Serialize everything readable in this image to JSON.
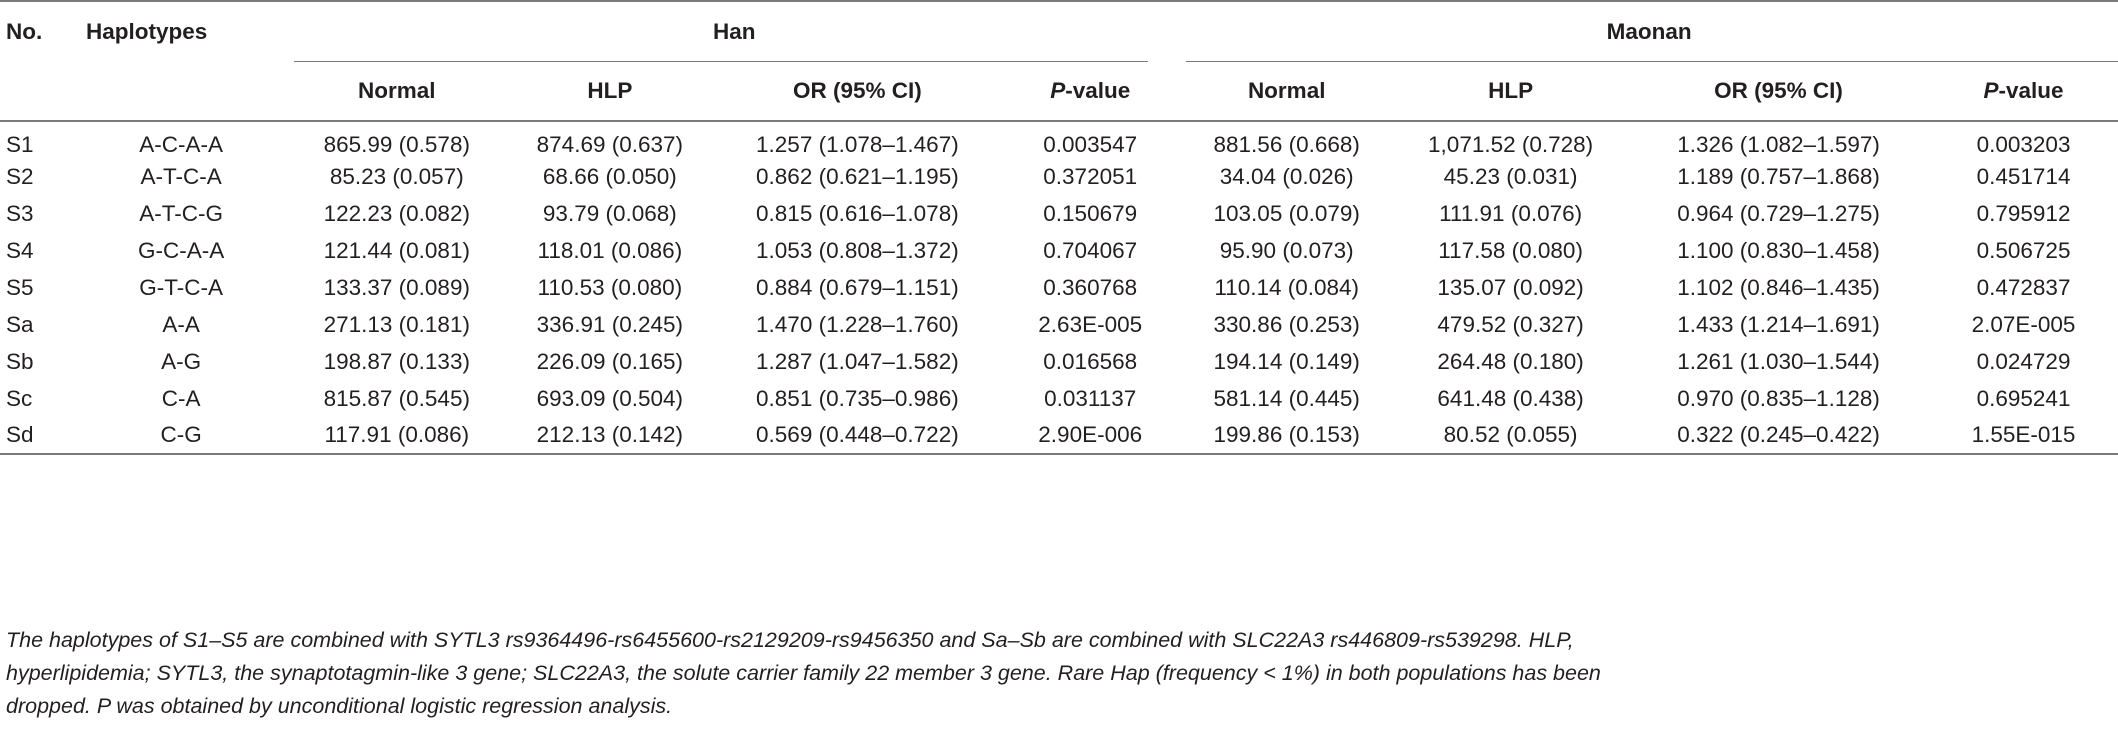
{
  "headers": {
    "no": "No.",
    "haplotypes": "Haplotypes",
    "group_han": "Han",
    "group_maonan": "Maonan",
    "sub": [
      "Normal",
      "HLP",
      "OR (95% CI)",
      "P",
      "-value"
    ]
  },
  "rows": [
    [
      "S1",
      "A-C-A-A",
      "865.99 (0.578)",
      "874.69 (0.637)",
      "1.257 (1.078–1.467)",
      "0.003547",
      "881.56 (0.668)",
      "1,071.52 (0.728)",
      "1.326 (1.082–1.597)",
      "0.003203"
    ],
    [
      "S2",
      "A-T-C-A",
      "85.23 (0.057)",
      "68.66 (0.050)",
      "0.862 (0.621–1.195)",
      "0.372051",
      "34.04 (0.026)",
      "45.23 (0.031)",
      "1.189 (0.757–1.868)",
      "0.451714"
    ],
    [
      "S3",
      "A-T-C-G",
      "122.23 (0.082)",
      "93.79 (0.068)",
      "0.815 (0.616–1.078)",
      "0.150679",
      "103.05 (0.079)",
      "111.91 (0.076)",
      "0.964 (0.729–1.275)",
      "0.795912"
    ],
    [
      "S4",
      "G-C-A-A",
      "121.44 (0.081)",
      "118.01 (0.086)",
      "1.053 (0.808–1.372)",
      "0.704067",
      "95.90 (0.073)",
      "117.58 (0.080)",
      "1.100 (0.830–1.458)",
      "0.506725"
    ],
    [
      "S5",
      "G-T-C-A",
      "133.37 (0.089)",
      "110.53 (0.080)",
      "0.884 (0.679–1.151)",
      "0.360768",
      "110.14 (0.084)",
      "135.07 (0.092)",
      "1.102 (0.846–1.435)",
      "0.472837"
    ],
    [
      "Sa",
      "A-A",
      "271.13 (0.181)",
      "336.91 (0.245)",
      "1.470 (1.228–1.760)",
      "2.63E-005",
      "330.86 (0.253)",
      "479.52 (0.327)",
      "1.433 (1.214–1.691)",
      "2.07E-005"
    ],
    [
      "Sb",
      "A-G",
      "198.87 (0.133)",
      "226.09 (0.165)",
      "1.287 (1.047–1.582)",
      "0.016568",
      "194.14 (0.149)",
      "264.48 (0.180)",
      "1.261 (1.030–1.544)",
      "0.024729"
    ],
    [
      "Sc",
      "C-A",
      "815.87 (0.545)",
      "693.09 (0.504)",
      "0.851 (0.735–0.986)",
      "0.031137",
      "581.14 (0.445)",
      "641.48 (0.438)",
      "0.970 (0.835–1.128)",
      "0.695241"
    ],
    [
      "Sd",
      "C-G",
      "117.91 (0.086)",
      "212.13 (0.142)",
      "0.569 (0.448–0.722)",
      "2.90E-006",
      "199.86 (0.153)",
      "80.52 (0.055)",
      "0.322 (0.245–0.422)",
      "1.55E-015"
    ]
  ],
  "footnote": {
    "line1": "The haplotypes of S1–S5 are combined with SYTL3 rs9364496-rs6455600-rs2129209-rs9456350 and Sa–Sb are combined with SLC22A3 rs446809-rs539298. HLP,",
    "line2": "hyperlipidemia; SYTL3, the synaptotagmin-like 3 gene; SLC22A3, the solute carrier family 22 member 3 gene. Rare Hap (frequency < 1%) in both populations has been",
    "line3": "dropped. P was obtained by unconditional logistic regression analysis."
  }
}
